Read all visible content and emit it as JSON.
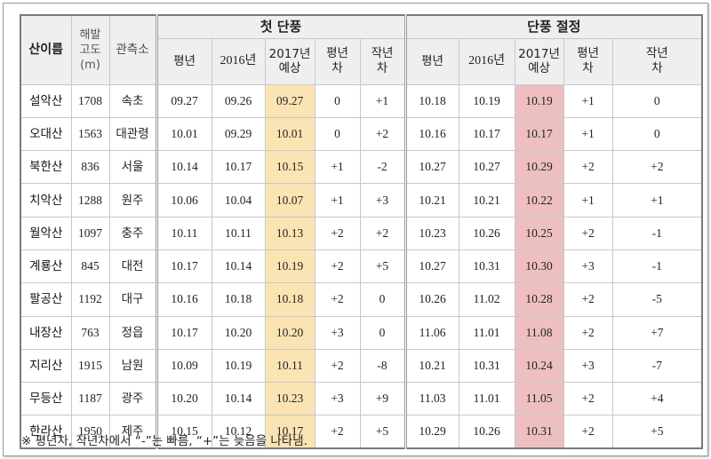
{
  "headers": {
    "name": "산이름",
    "altitude": [
      "해발",
      "고도",
      "(m)"
    ],
    "station": "관측소",
    "group1": "첫 단풍",
    "group2": "단풍 절정",
    "avg": "평년",
    "y2016": "2016년",
    "y2017": [
      "2017년",
      "예상"
    ],
    "diff_avg": [
      "평년",
      "차"
    ],
    "diff_last": [
      "작년",
      "차"
    ]
  },
  "rows": [
    {
      "name": "설악산",
      "alt": "1708",
      "station": "속초",
      "first": [
        "09.27",
        "09.26",
        "09.27",
        "0",
        "+1"
      ],
      "peak": [
        "10.18",
        "10.19",
        "10.19",
        "+1",
        "0"
      ]
    },
    {
      "name": "오대산",
      "alt": "1563",
      "station": "대관령",
      "first": [
        "10.01",
        "09.29",
        "10.01",
        "0",
        "+2"
      ],
      "peak": [
        "10.16",
        "10.17",
        "10.17",
        "+1",
        "0"
      ]
    },
    {
      "name": "북한산",
      "alt": "836",
      "station": "서울",
      "first": [
        "10.14",
        "10.17",
        "10.15",
        "+1",
        "-2"
      ],
      "peak": [
        "10.27",
        "10.27",
        "10.29",
        "+2",
        "+2"
      ]
    },
    {
      "name": "치악산",
      "alt": "1288",
      "station": "원주",
      "first": [
        "10.06",
        "10.04",
        "10.07",
        "+1",
        "+3"
      ],
      "peak": [
        "10.21",
        "10.21",
        "10.22",
        "+1",
        "+1"
      ]
    },
    {
      "name": "월악산",
      "alt": "1097",
      "station": "충주",
      "first": [
        "10.11",
        "10.11",
        "10.13",
        "+2",
        "+2"
      ],
      "peak": [
        "10.23",
        "10.26",
        "10.25",
        "+2",
        "-1"
      ]
    },
    {
      "name": "계룡산",
      "alt": "845",
      "station": "대전",
      "first": [
        "10.17",
        "10.14",
        "10.19",
        "+2",
        "+5"
      ],
      "peak": [
        "10.27",
        "10.31",
        "10.30",
        "+3",
        "-1"
      ]
    },
    {
      "name": "팔공산",
      "alt": "1192",
      "station": "대구",
      "first": [
        "10.16",
        "10.18",
        "10.18",
        "+2",
        "0"
      ],
      "peak": [
        "10.26",
        "11.02",
        "10.28",
        "+2",
        "-5"
      ]
    },
    {
      "name": "내장산",
      "alt": "763",
      "station": "정읍",
      "first": [
        "10.17",
        "10.20",
        "10.20",
        "+3",
        "0"
      ],
      "peak": [
        "11.06",
        "11.01",
        "11.08",
        "+2",
        "+7"
      ]
    },
    {
      "name": "지리산",
      "alt": "1915",
      "station": "남원",
      "first": [
        "10.09",
        "10.19",
        "10.11",
        "+2",
        "-8"
      ],
      "peak": [
        "10.21",
        "10.31",
        "10.24",
        "+3",
        "-7"
      ]
    },
    {
      "name": "무등산",
      "alt": "1187",
      "station": "광주",
      "first": [
        "10.20",
        "10.14",
        "10.23",
        "+3",
        "+9"
      ],
      "peak": [
        "11.03",
        "11.01",
        "11.05",
        "+2",
        "+4"
      ]
    },
    {
      "name": "한라산",
      "alt": "1950",
      "station": "제주",
      "first": [
        "10.15",
        "10.12",
        "10.17",
        "+2",
        "+5"
      ],
      "peak": [
        "10.29",
        "10.26",
        "10.31",
        "+2",
        "+5"
      ]
    }
  ],
  "note": "※ 평년차, 작년차에서 “-”는 빠름, “+”는 늦음을 나타냄.",
  "colors": {
    "first_2017": "#fbe4b3",
    "peak_2017": "#eebfc1"
  }
}
